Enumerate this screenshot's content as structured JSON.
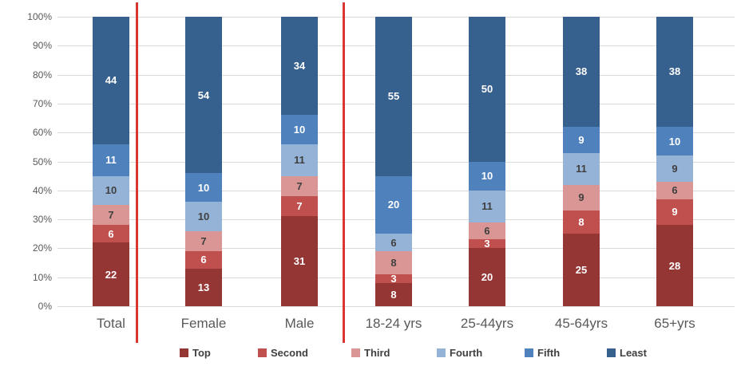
{
  "chart_data": {
    "type": "bar",
    "subtype": "100-percent-stacked-column",
    "title": "",
    "categories": [
      "Total",
      "Female",
      "Male",
      "18-24 yrs",
      "25-44yrs",
      "45-64yrs",
      "65+yrs"
    ],
    "series": [
      {
        "name": "Top",
        "color": "#943634",
        "label_color": "#FFFFFF",
        "values": [
          22,
          13,
          31,
          8,
          20,
          25,
          28
        ]
      },
      {
        "name": "Second",
        "color": "#C0504D",
        "label_color": "#FFFFFF",
        "values": [
          6,
          6,
          7,
          3,
          3,
          8,
          9
        ]
      },
      {
        "name": "Third",
        "color": "#D99694",
        "label_color": "#3F3F3F",
        "values": [
          7,
          7,
          7,
          8,
          6,
          9,
          6
        ]
      },
      {
        "name": "Fourth",
        "color": "#95B3D7",
        "label_color": "#3F3F3F",
        "values": [
          10,
          10,
          11,
          6,
          11,
          11,
          9
        ]
      },
      {
        "name": "Fifth",
        "color": "#4F81BD",
        "label_color": "#FFFFFF",
        "values": [
          11,
          10,
          10,
          20,
          10,
          9,
          10
        ]
      },
      {
        "name": "Least",
        "color": "#36608E",
        "label_color": "#FFFFFF",
        "values": [
          44,
          54,
          34,
          55,
          50,
          38,
          38
        ]
      }
    ],
    "y_axis": {
      "ticks": [
        "0%",
        "10%",
        "20%",
        "30%",
        "40%",
        "50%",
        "60%",
        "70%",
        "80%",
        "90%",
        "100%"
      ],
      "range": [
        0,
        100
      ]
    },
    "grid": true,
    "gridline_color": "#D9D9D9",
    "axis_text_color": "#595959",
    "legend": {
      "position": "bottom",
      "entries": [
        "Top",
        "Second",
        "Third",
        "Fourth",
        "Fifth",
        "Least"
      ]
    },
    "annotations": {
      "divider_lines": {
        "color": "#D93632",
        "after_categories": [
          "Total",
          "Male"
        ]
      }
    }
  }
}
